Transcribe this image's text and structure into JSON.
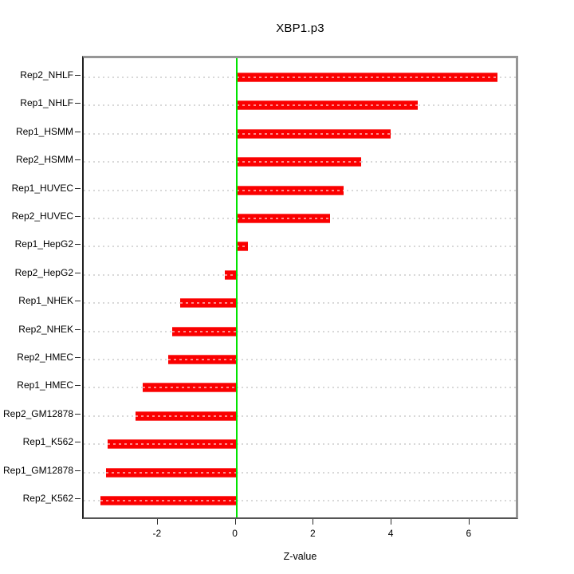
{
  "chart_data": {
    "type": "bar",
    "orientation": "horizontal",
    "title": "XBP1.p3",
    "xlabel": "Z-value",
    "categories": [
      "Rep2_NHLF",
      "Rep1_NHLF",
      "Rep1_HSMM",
      "Rep2_HSMM",
      "Rep1_HUVEC",
      "Rep2_HUVEC",
      "Rep1_HepG2",
      "Rep2_HepG2",
      "Rep1_NHEK",
      "Rep2_NHEK",
      "Rep2_HMEC",
      "Rep1_HMEC",
      "Rep2_GM12878",
      "Rep1_K562",
      "Rep1_GM12878",
      "Rep2_K562"
    ],
    "values": [
      6.7,
      4.65,
      3.95,
      3.2,
      2.75,
      2.4,
      0.3,
      -0.3,
      -1.45,
      -1.65,
      -1.75,
      -2.4,
      -2.6,
      -3.3,
      -3.35,
      -3.5
    ],
    "xticks": [
      -2,
      0,
      2,
      4,
      6
    ],
    "xlim": [
      -3.92,
      7.17
    ],
    "grid": true,
    "legend_position": "none",
    "bar_color": "#fa0000",
    "zero_line_color": "#00e400",
    "grid_color": "#d8d8d8"
  }
}
